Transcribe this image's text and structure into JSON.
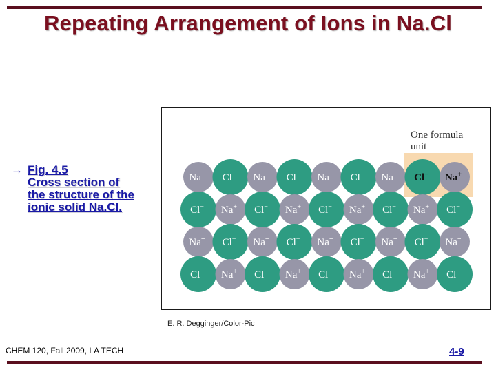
{
  "slide": {
    "title": "Repeating Arrangement of Ions in Na.Cl",
    "bullet_lines": [
      "Fig. 4.5",
      "Cross section of",
      "the structure of the",
      "ionic solid Na.Cl."
    ],
    "arrow": "→",
    "credit": "E. R. Degginger/Color-Pic",
    "footer_left": "CHEM 120, Fall 2009, LA TECH",
    "page_number": "4-9"
  },
  "figure": {
    "formula_unit_label": [
      "One formula",
      "unit"
    ],
    "na_label": "Na",
    "na_charge": "+",
    "cl_label": "Cl",
    "cl_charge": "−",
    "colors": {
      "na": "#9796a8",
      "cl": "#2e9c82",
      "highlight": "#f8d9b0",
      "ion_text": "#ffffff"
    },
    "rows": [
      [
        "Na",
        "Cl",
        "Na",
        "Cl",
        "Na",
        "Cl",
        "Na",
        "Cl",
        "Na"
      ],
      [
        "Cl",
        "Na",
        "Cl",
        "Na",
        "Cl",
        "Na",
        "Cl",
        "Na",
        "Cl"
      ],
      [
        "Na",
        "Cl",
        "Na",
        "Cl",
        "Na",
        "Cl",
        "Na",
        "Cl",
        "Na"
      ],
      [
        "Cl",
        "Na",
        "Cl",
        "Na",
        "Cl",
        "Na",
        "Cl",
        "Na",
        "Cl"
      ]
    ],
    "highlighted_unit": {
      "row": 0,
      "columns": [
        7,
        8
      ]
    }
  }
}
